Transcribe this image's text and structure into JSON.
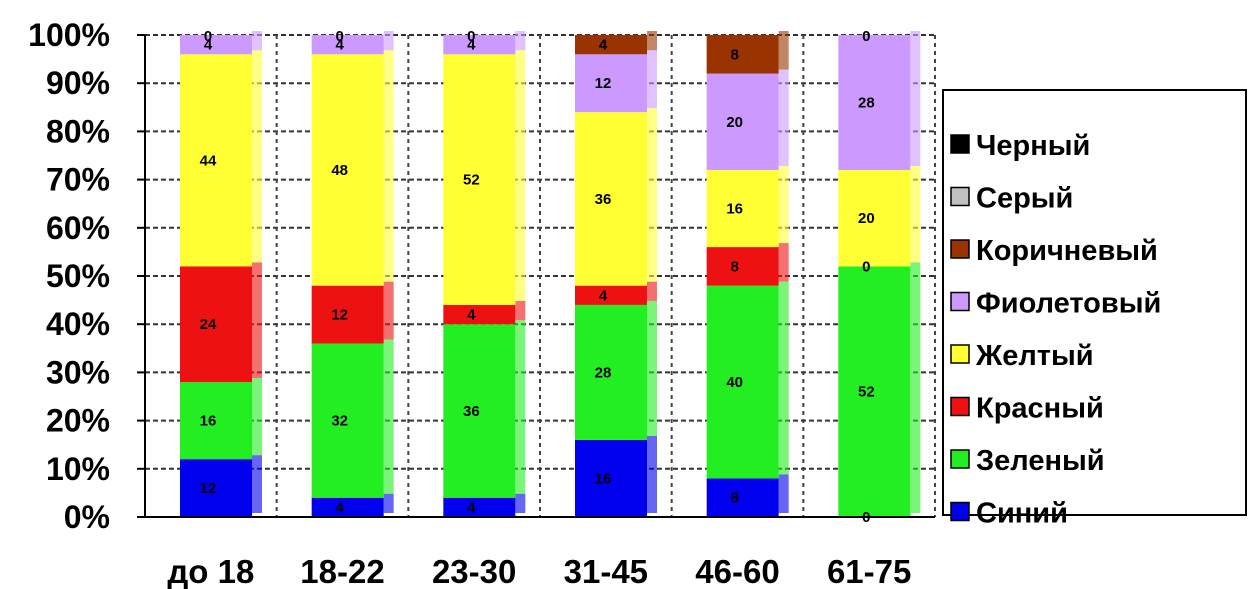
{
  "chart_data": {
    "type": "bar",
    "stacked": "percent",
    "categories": [
      "до 18",
      "18-22",
      "23-30",
      "31-45",
      "46-60",
      "61-75"
    ],
    "y_ticks": [
      "0%",
      "10%",
      "20%",
      "30%",
      "40%",
      "50%",
      "60%",
      "70%",
      "80%",
      "90%",
      "100%"
    ],
    "ylim": [
      0,
      100
    ],
    "grid": true,
    "legend_position": "right",
    "series": [
      {
        "name": "Синий",
        "color": "#0000ee",
        "values": [
          12,
          4,
          4,
          16,
          8,
          0
        ]
      },
      {
        "name": "Зеленый",
        "color": "#22ee22",
        "values": [
          16,
          32,
          36,
          28,
          40,
          52
        ]
      },
      {
        "name": "Красный",
        "color": "#ee1111",
        "values": [
          24,
          12,
          4,
          4,
          8,
          0
        ]
      },
      {
        "name": "Желтый",
        "color": "#ffff33",
        "values": [
          44,
          48,
          52,
          36,
          16,
          20
        ]
      },
      {
        "name": "Фиолетовый",
        "color": "#cc99ff",
        "values": [
          4,
          4,
          4,
          12,
          20,
          28
        ]
      },
      {
        "name": "Коричневый",
        "color": "#993300",
        "values": [
          0,
          0,
          0,
          4,
          8,
          0
        ]
      },
      {
        "name": "Серый",
        "color": "#c0c0c0",
        "values": [
          0,
          0,
          0,
          0,
          0,
          0
        ]
      },
      {
        "name": "Черный",
        "color": "#000000",
        "values": [
          0,
          0,
          0,
          0,
          0,
          0
        ]
      }
    ]
  }
}
